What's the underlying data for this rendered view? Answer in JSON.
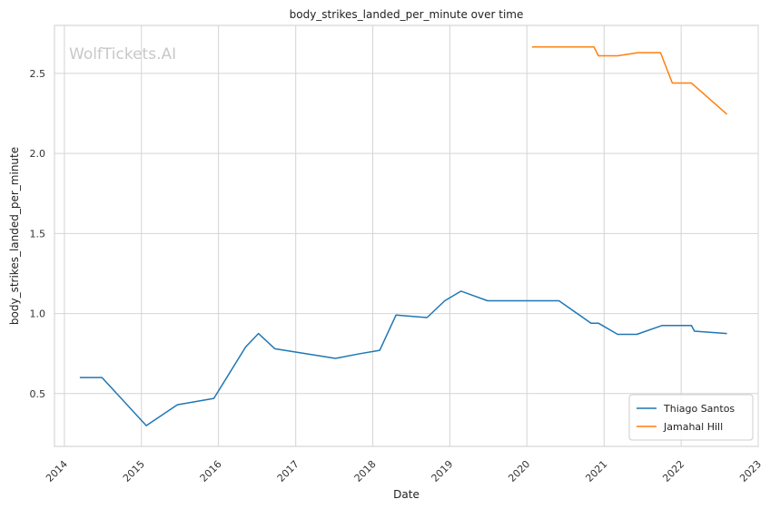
{
  "chart_data": {
    "type": "line",
    "title": "body_strikes_landed_per_minute over time",
    "xlabel": "Date",
    "ylabel": "body_strikes_landed_per_minute",
    "watermark": "WolfTickets.AI",
    "xlim": [
      "2013-11-15",
      "2023-01-01"
    ],
    "ylim": [
      0.17,
      2.8
    ],
    "x_ticks": [
      "2014",
      "2015",
      "2016",
      "2017",
      "2018",
      "2019",
      "2020",
      "2021",
      "2022",
      "2023"
    ],
    "y_ticks": [
      "0.5",
      "1.0",
      "1.5",
      "2.0",
      "2.5"
    ],
    "grid": true,
    "legend_position": "lower-right",
    "series": [
      {
        "name": "Thiago Santos",
        "color": "#1f77b4",
        "points": [
          [
            "2014-03-15",
            0.6
          ],
          [
            "2014-06-28",
            0.6
          ],
          [
            "2015-01-24",
            0.3
          ],
          [
            "2015-06-20",
            0.43
          ],
          [
            "2015-12-10",
            0.47
          ],
          [
            "2016-05-08",
            0.79
          ],
          [
            "2016-07-08",
            0.875
          ],
          [
            "2016-09-24",
            0.78
          ],
          [
            "2017-07-08",
            0.72
          ],
          [
            "2017-11-04",
            0.75
          ],
          [
            "2018-02-03",
            0.77
          ],
          [
            "2018-04-21",
            0.99
          ],
          [
            "2018-09-15",
            0.975
          ],
          [
            "2018-12-08",
            1.08
          ],
          [
            "2019-02-23",
            1.14
          ],
          [
            "2019-06-29",
            1.08
          ],
          [
            "2020-06-01",
            1.08
          ],
          [
            "2020-10-31",
            0.94
          ],
          [
            "2020-12-05",
            0.94
          ],
          [
            "2021-03-06",
            0.87
          ],
          [
            "2021-06-05",
            0.87
          ],
          [
            "2021-10-02",
            0.925
          ],
          [
            "2022-02-19",
            0.925
          ],
          [
            "2022-03-05",
            0.89
          ],
          [
            "2022-08-06",
            0.875
          ]
        ]
      },
      {
        "name": "Jamahal Hill",
        "color": "#ff7f0e",
        "points": [
          [
            "2020-01-25",
            2.665
          ],
          [
            "2020-11-14",
            2.665
          ],
          [
            "2020-12-05",
            2.61
          ],
          [
            "2021-03-06",
            2.61
          ],
          [
            "2021-06-12",
            2.63
          ],
          [
            "2021-09-25",
            2.63
          ],
          [
            "2021-11-20",
            2.44
          ],
          [
            "2022-02-19",
            2.44
          ],
          [
            "2022-08-06",
            2.245
          ]
        ]
      }
    ]
  }
}
